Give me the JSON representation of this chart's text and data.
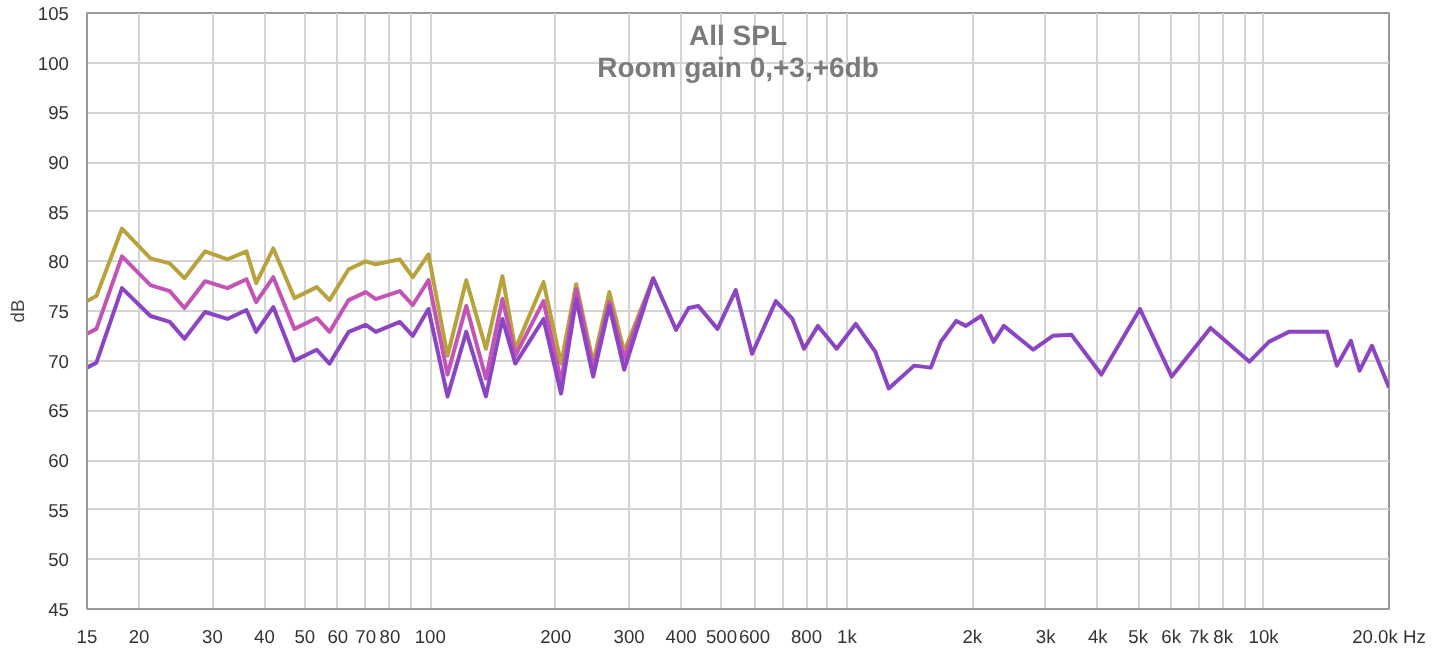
{
  "chart_data": {
    "type": "line",
    "title": "All SPL",
    "subtitle": "Room gain 0,+3,+6db",
    "ylabel": "dB",
    "x": [
      15,
      15.8,
      18.2,
      21.3,
      23.7,
      25.7,
      28.8,
      32.6,
      36.2,
      38.2,
      42,
      47.2,
      53.4,
      57.3,
      63.7,
      70,
      74,
      84.5,
      90.8,
      99,
      110,
      122,
      136,
      149,
      160,
      187,
      206,
      224,
      246,
      269,
      292,
      343,
      389,
      417,
      440,
      489,
      541,
      592,
      675,
      740,
      789,
      852,
      945,
      1050,
      1170,
      1260,
      1450,
      1590,
      1680,
      1830,
      1930,
      2100,
      2250,
      2380,
      2800,
      3120,
      3460,
      4080,
      5050,
      6020,
      7460,
      9250,
      10300,
      11500,
      12800,
      14200,
      15000,
      16200,
      17000,
      18200,
      20000
    ],
    "series": [
      {
        "color": "#b8a23c",
        "values": [
          76.0,
          76.5,
          83.3,
          80.3,
          79.8,
          78.3,
          81.0,
          80.2,
          81.0,
          77.8,
          81.3,
          76.3,
          77.4,
          76.1,
          79.2,
          80.0,
          79.7,
          80.2,
          78.4,
          80.7,
          70.5,
          78.1,
          71.2,
          78.5,
          71.2,
          77.9,
          69.7,
          77.7,
          69.8,
          76.9,
          70.9,
          78.3,
          null,
          null,
          null,
          null,
          null,
          null,
          null,
          null,
          null,
          null,
          null,
          null,
          null,
          null,
          null,
          null,
          null,
          null,
          null,
          null,
          null,
          null,
          null,
          null,
          null,
          null,
          null,
          null,
          null,
          null,
          null,
          null,
          null,
          null,
          null,
          null,
          null,
          null,
          null
        ]
      },
      {
        "color": "#c353b4",
        "values": [
          72.7,
          73.2,
          80.5,
          77.6,
          77.0,
          75.3,
          78.0,
          77.3,
          78.2,
          75.9,
          78.4,
          73.2,
          74.3,
          72.9,
          76.1,
          76.9,
          76.2,
          77.0,
          75.6,
          78.1,
          68.6,
          75.5,
          68.2,
          76.2,
          70.5,
          76.0,
          67.9,
          77.2,
          69.2,
          75.9,
          70.2,
          78.3,
          null,
          null,
          null,
          null,
          null,
          null,
          null,
          null,
          null,
          null,
          null,
          null,
          null,
          null,
          null,
          null,
          null,
          null,
          null,
          null,
          null,
          null,
          null,
          null,
          null,
          null,
          null,
          null,
          null,
          null,
          null,
          null,
          null,
          null,
          null,
          null,
          null,
          null,
          null
        ]
      },
      {
        "color": "#8c45c2",
        "values": [
          69.3,
          69.8,
          77.3,
          74.5,
          73.9,
          72.2,
          74.9,
          74.2,
          75.1,
          72.9,
          75.4,
          70.0,
          71.1,
          69.7,
          72.9,
          73.6,
          72.9,
          73.9,
          72.5,
          75.2,
          66.4,
          72.9,
          66.4,
          74.2,
          69.7,
          74.2,
          66.7,
          76.2,
          68.4,
          75.5,
          69.1,
          78.3,
          73.1,
          75.3,
          75.5,
          73.2,
          77.1,
          70.7,
          76.0,
          74.2,
          71.2,
          73.5,
          71.2,
          73.7,
          70.9,
          67.2,
          69.5,
          69.3,
          71.9,
          74.0,
          73.5,
          74.5,
          71.9,
          73.5,
          71.1,
          72.5,
          72.6,
          68.6,
          75.2,
          68.4,
          73.3,
          69.9,
          71.9,
          72.9,
          72.9,
          72.9,
          69.5,
          72.0,
          69.0,
          71.5,
          67.3
        ]
      }
    ],
    "log": "x",
    "xlim": [
      15,
      20000
    ],
    "ylim": [
      45,
      105
    ],
    "xticks": [
      15,
      20,
      30,
      40,
      50,
      60,
      70,
      80,
      {
        "value": 90,
        "label": null
      },
      100,
      200,
      300,
      400,
      500,
      600,
      {
        "value": 700,
        "label": null
      },
      800,
      {
        "value": 900,
        "label": null
      },
      {
        "value": 1000,
        "label": "1k"
      },
      {
        "value": 2000,
        "label": "2k"
      },
      {
        "value": 3000,
        "label": "3k"
      },
      {
        "value": 4000,
        "label": "4k"
      },
      {
        "value": 5000,
        "label": "5k"
      },
      {
        "value": 6000,
        "label": "6k"
      },
      {
        "value": 7000,
        "label": "7k"
      },
      {
        "value": 8000,
        "label": "8k"
      },
      {
        "value": 9000,
        "label": null
      },
      {
        "value": 10000,
        "label": "10k"
      },
      {
        "value": 20000,
        "label": "20.0k Hz"
      }
    ],
    "yticks": [
      45,
      50,
      55,
      60,
      65,
      70,
      75,
      80,
      85,
      90,
      95,
      100,
      105
    ],
    "grid": true,
    "marker": "none",
    "line_style": "solid"
  }
}
